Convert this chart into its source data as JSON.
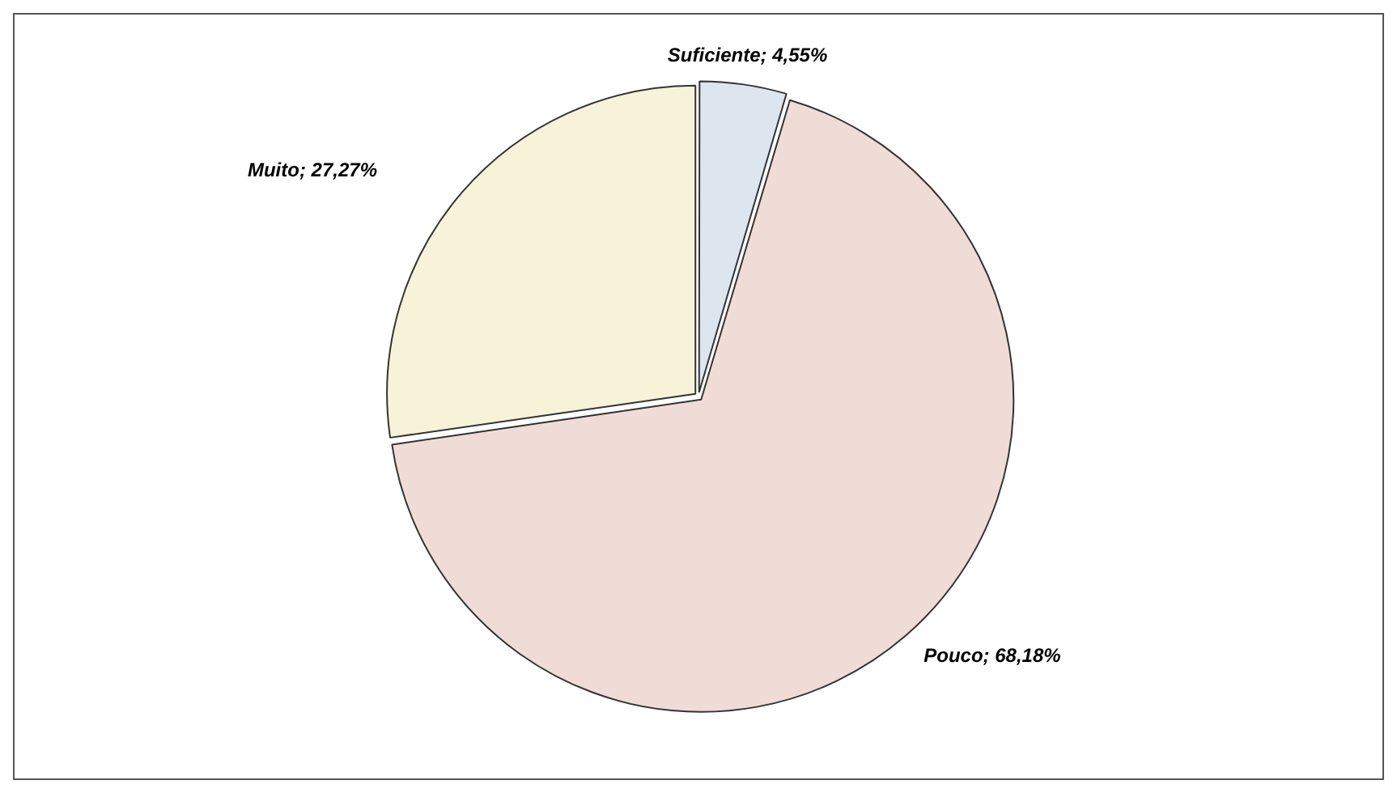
{
  "chart_data": {
    "type": "pie",
    "categories": [
      "Suficiente",
      "Pouco",
      "Muito"
    ],
    "values": [
      4.55,
      68.18,
      27.27
    ],
    "value_labels": [
      "4,55%",
      "68,18%",
      "27,27%"
    ],
    "colors": [
      "#dde5ef",
      "#f0dcd6",
      "#f6f3d9"
    ],
    "legend": false
  }
}
